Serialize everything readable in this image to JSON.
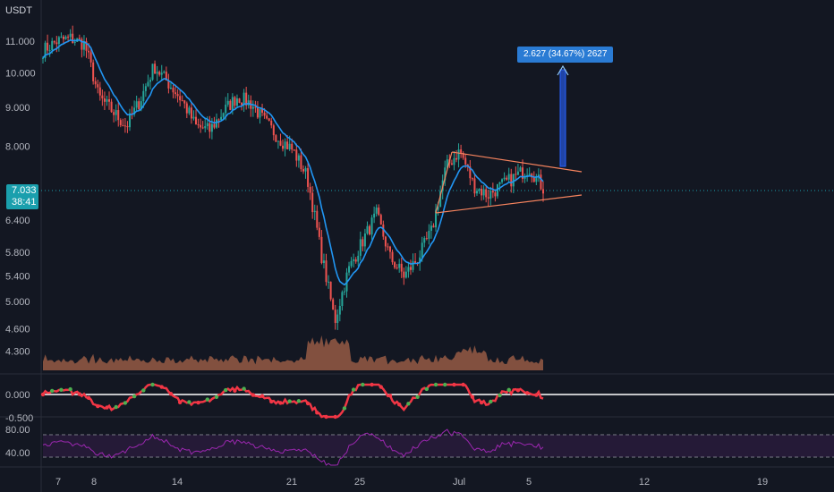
{
  "currency_label": "USDT",
  "current_price": {
    "value": "7.033",
    "countdown": "38:41",
    "color": "#1a9fad"
  },
  "measure_label": "2.627 (34.67%) 2627",
  "chart_data": [
    {
      "type": "candlestick",
      "title": "",
      "y_scale": "log",
      "ylim": [
        4.1,
        12.2
      ],
      "y_ticks": [
        "11.000",
        "10.000",
        "9.000",
        "8.000",
        "7.000",
        "6.400",
        "5.800",
        "5.400",
        "5.000",
        "4.600",
        "4.300"
      ],
      "x_ticks": [
        "7",
        "8",
        "14",
        "21",
        "25",
        "Jul",
        "5",
        "12",
        "19"
      ],
      "close_path": [
        [
          7,
          10.7
        ],
        [
          8,
          11.0
        ],
        [
          9,
          11.1
        ],
        [
          10,
          10.9
        ],
        [
          11,
          9.3
        ],
        [
          12,
          8.9
        ],
        [
          13,
          8.5
        ],
        [
          14,
          9.2
        ],
        [
          15,
          10.2
        ],
        [
          16,
          9.7
        ],
        [
          17,
          9.2
        ],
        [
          18,
          8.5
        ],
        [
          19,
          8.4
        ],
        [
          20,
          8.9
        ],
        [
          21,
          9.3
        ],
        [
          22,
          9.1
        ],
        [
          23,
          8.6
        ],
        [
          24,
          8.2
        ],
        [
          25,
          7.9
        ],
        [
          26,
          7.3
        ],
        [
          27,
          5.8
        ],
        [
          28,
          4.7
        ],
        [
          29,
          5.5
        ],
        [
          30,
          6.0
        ],
        [
          31,
          6.5
        ],
        [
          32,
          5.7
        ],
        [
          33,
          5.4
        ],
        [
          34,
          5.7
        ],
        [
          35,
          6.2
        ],
        [
          36,
          7.5
        ],
        [
          37,
          7.9
        ],
        [
          38,
          7.1
        ],
        [
          39,
          6.9
        ],
        [
          40,
          7.1
        ],
        [
          41,
          7.3
        ],
        [
          42,
          7.5
        ],
        [
          43,
          7.05
        ]
      ],
      "indicators": [
        "EMA"
      ],
      "annotations": [
        "symmetrical triangle",
        "measured move arrow"
      ],
      "colors": {
        "up": "#26a69a",
        "down": "#ef5350",
        "ema": "#2196f3",
        "triangle": "#f7845e",
        "arrow": "#2962ff"
      }
    },
    {
      "type": "bar",
      "name": "volume",
      "colors": {
        "area": "#a8644a"
      }
    },
    {
      "type": "line",
      "name": "oscillator",
      "y_ticks": [
        "0.000",
        "-0.500"
      ],
      "colors": {
        "up": "#4caf50",
        "down": "#f23645",
        "zero": "#ffffff"
      }
    },
    {
      "type": "line",
      "name": "rsi",
      "y_ticks": [
        "80.00",
        "40.00"
      ],
      "colors": {
        "line": "#9c27b0",
        "band": "#2a1b3d"
      }
    }
  ]
}
